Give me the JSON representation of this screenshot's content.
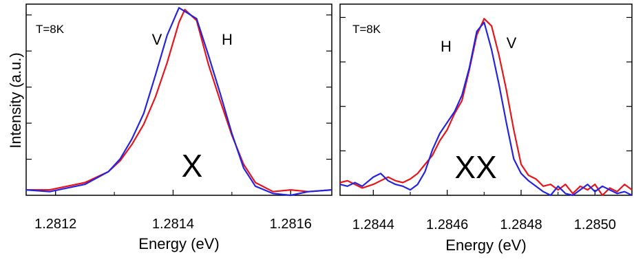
{
  "figure": {
    "ylabel": "Intensity (a.u.)"
  },
  "chart_data": [
    {
      "type": "line",
      "xlabel": "Energy (eV)",
      "ylabel": "Intensity (a.u.)",
      "xlim": [
        1.28115,
        1.28167
      ],
      "ylim": [
        0,
        1.05
      ],
      "xticks": [
        1.2812,
        1.2814,
        1.2816
      ],
      "xtick_labels": [
        "1.2812",
        "1.2814",
        "1.2816"
      ],
      "yticks_count": 5,
      "grid": false,
      "annotations": [
        {
          "text": "T=8K",
          "size": "small"
        },
        {
          "text": "V",
          "size": "medium"
        },
        {
          "text": "H",
          "size": "medium"
        },
        {
          "text": "X",
          "size": "large"
        }
      ],
      "series": [
        {
          "color": "#e8141b",
          "x": [
            1.28115,
            1.28119,
            1.28125,
            1.28129,
            1.28131,
            1.28133,
            1.28135,
            1.28137,
            1.28139,
            1.28141,
            1.28142,
            1.28144,
            1.28146,
            1.28148,
            1.2815,
            1.28152,
            1.28154,
            1.28157,
            1.2816,
            1.28163,
            1.28167
          ],
          "y": [
            0.03,
            0.03,
            0.07,
            0.13,
            0.19,
            0.28,
            0.39,
            0.54,
            0.73,
            0.95,
            1.02,
            0.96,
            0.72,
            0.52,
            0.33,
            0.17,
            0.07,
            0.02,
            0.03,
            0.02,
            0.03
          ]
        },
        {
          "color": "#2323e0",
          "x": [
            1.28115,
            1.28119,
            1.28125,
            1.28129,
            1.28131,
            1.28133,
            1.28135,
            1.28137,
            1.28139,
            1.28141,
            1.28142,
            1.28144,
            1.28146,
            1.28148,
            1.2815,
            1.28152,
            1.28154,
            1.28157,
            1.2816,
            1.28163,
            1.28167
          ],
          "y": [
            0.03,
            0.02,
            0.06,
            0.13,
            0.2,
            0.31,
            0.45,
            0.66,
            0.88,
            1.03,
            1.01,
            0.97,
            0.77,
            0.56,
            0.34,
            0.15,
            0.05,
            0.01,
            0.0,
            0.02,
            0.03
          ]
        }
      ]
    },
    {
      "type": "line",
      "xlabel": "Energy (eV)",
      "xlim": [
        1.28431,
        1.2851
      ],
      "ylim": [
        0,
        1.05
      ],
      "xticks": [
        1.2844,
        1.2846,
        1.2848,
        1.285
      ],
      "xtick_labels": [
        "1.2844",
        "1.2846",
        "1.2848",
        "1.2850"
      ],
      "yticks_count": 4,
      "grid": false,
      "annotations": [
        {
          "text": "T=8K",
          "size": "small"
        },
        {
          "text": "H",
          "size": "medium"
        },
        {
          "text": "V",
          "size": "medium"
        },
        {
          "text": "XX",
          "size": "large"
        }
      ],
      "series": [
        {
          "color": "#e8141b",
          "x": [
            1.28431,
            1.28433,
            1.28435,
            1.28437,
            1.2844,
            1.28442,
            1.28444,
            1.28446,
            1.28448,
            1.2845,
            1.28452,
            1.28454,
            1.28456,
            1.28458,
            1.2846,
            1.28462,
            1.28464,
            1.28466,
            1.28468,
            1.2847,
            1.28472,
            1.28474,
            1.28476,
            1.28478,
            1.2848,
            1.28482,
            1.28484,
            1.28486,
            1.28488,
            1.2849,
            1.28492,
            1.28494,
            1.28496,
            1.28498,
            1.285,
            1.28502,
            1.28504,
            1.28506,
            1.28508,
            1.2851
          ],
          "y": [
            0.07,
            0.08,
            0.06,
            0.04,
            0.06,
            0.08,
            0.1,
            0.08,
            0.07,
            0.09,
            0.12,
            0.17,
            0.22,
            0.3,
            0.36,
            0.45,
            0.52,
            0.69,
            0.88,
            0.97,
            0.93,
            0.77,
            0.58,
            0.36,
            0.17,
            0.11,
            0.09,
            0.05,
            0.06,
            0.03,
            0.06,
            0.01,
            0.05,
            0.03,
            0.06,
            0.0,
            0.04,
            0.02,
            0.06,
            0.03
          ]
        },
        {
          "color": "#2323e0",
          "x": [
            1.28431,
            1.28433,
            1.28435,
            1.28437,
            1.2844,
            1.28442,
            1.28444,
            1.28446,
            1.28448,
            1.2845,
            1.28452,
            1.28454,
            1.28456,
            1.28458,
            1.2846,
            1.28462,
            1.28464,
            1.28466,
            1.28468,
            1.2847,
            1.28472,
            1.28474,
            1.28476,
            1.28478,
            1.2848,
            1.28482,
            1.28484,
            1.28486,
            1.28488,
            1.2849,
            1.28492,
            1.28494,
            1.28496,
            1.28498,
            1.285,
            1.28502,
            1.28504,
            1.28506,
            1.28508,
            1.2851
          ],
          "y": [
            0.06,
            0.05,
            0.07,
            0.05,
            0.1,
            0.12,
            0.08,
            0.06,
            0.05,
            0.03,
            0.06,
            0.13,
            0.25,
            0.34,
            0.4,
            0.46,
            0.55,
            0.7,
            0.9,
            0.95,
            0.8,
            0.61,
            0.4,
            0.2,
            0.12,
            0.08,
            0.05,
            0.02,
            0.0,
            0.05,
            0.01,
            0.0,
            0.03,
            0.06,
            0.02,
            0.05,
            0.03,
            0.01,
            0.02,
            0.0
          ]
        }
      ]
    }
  ]
}
